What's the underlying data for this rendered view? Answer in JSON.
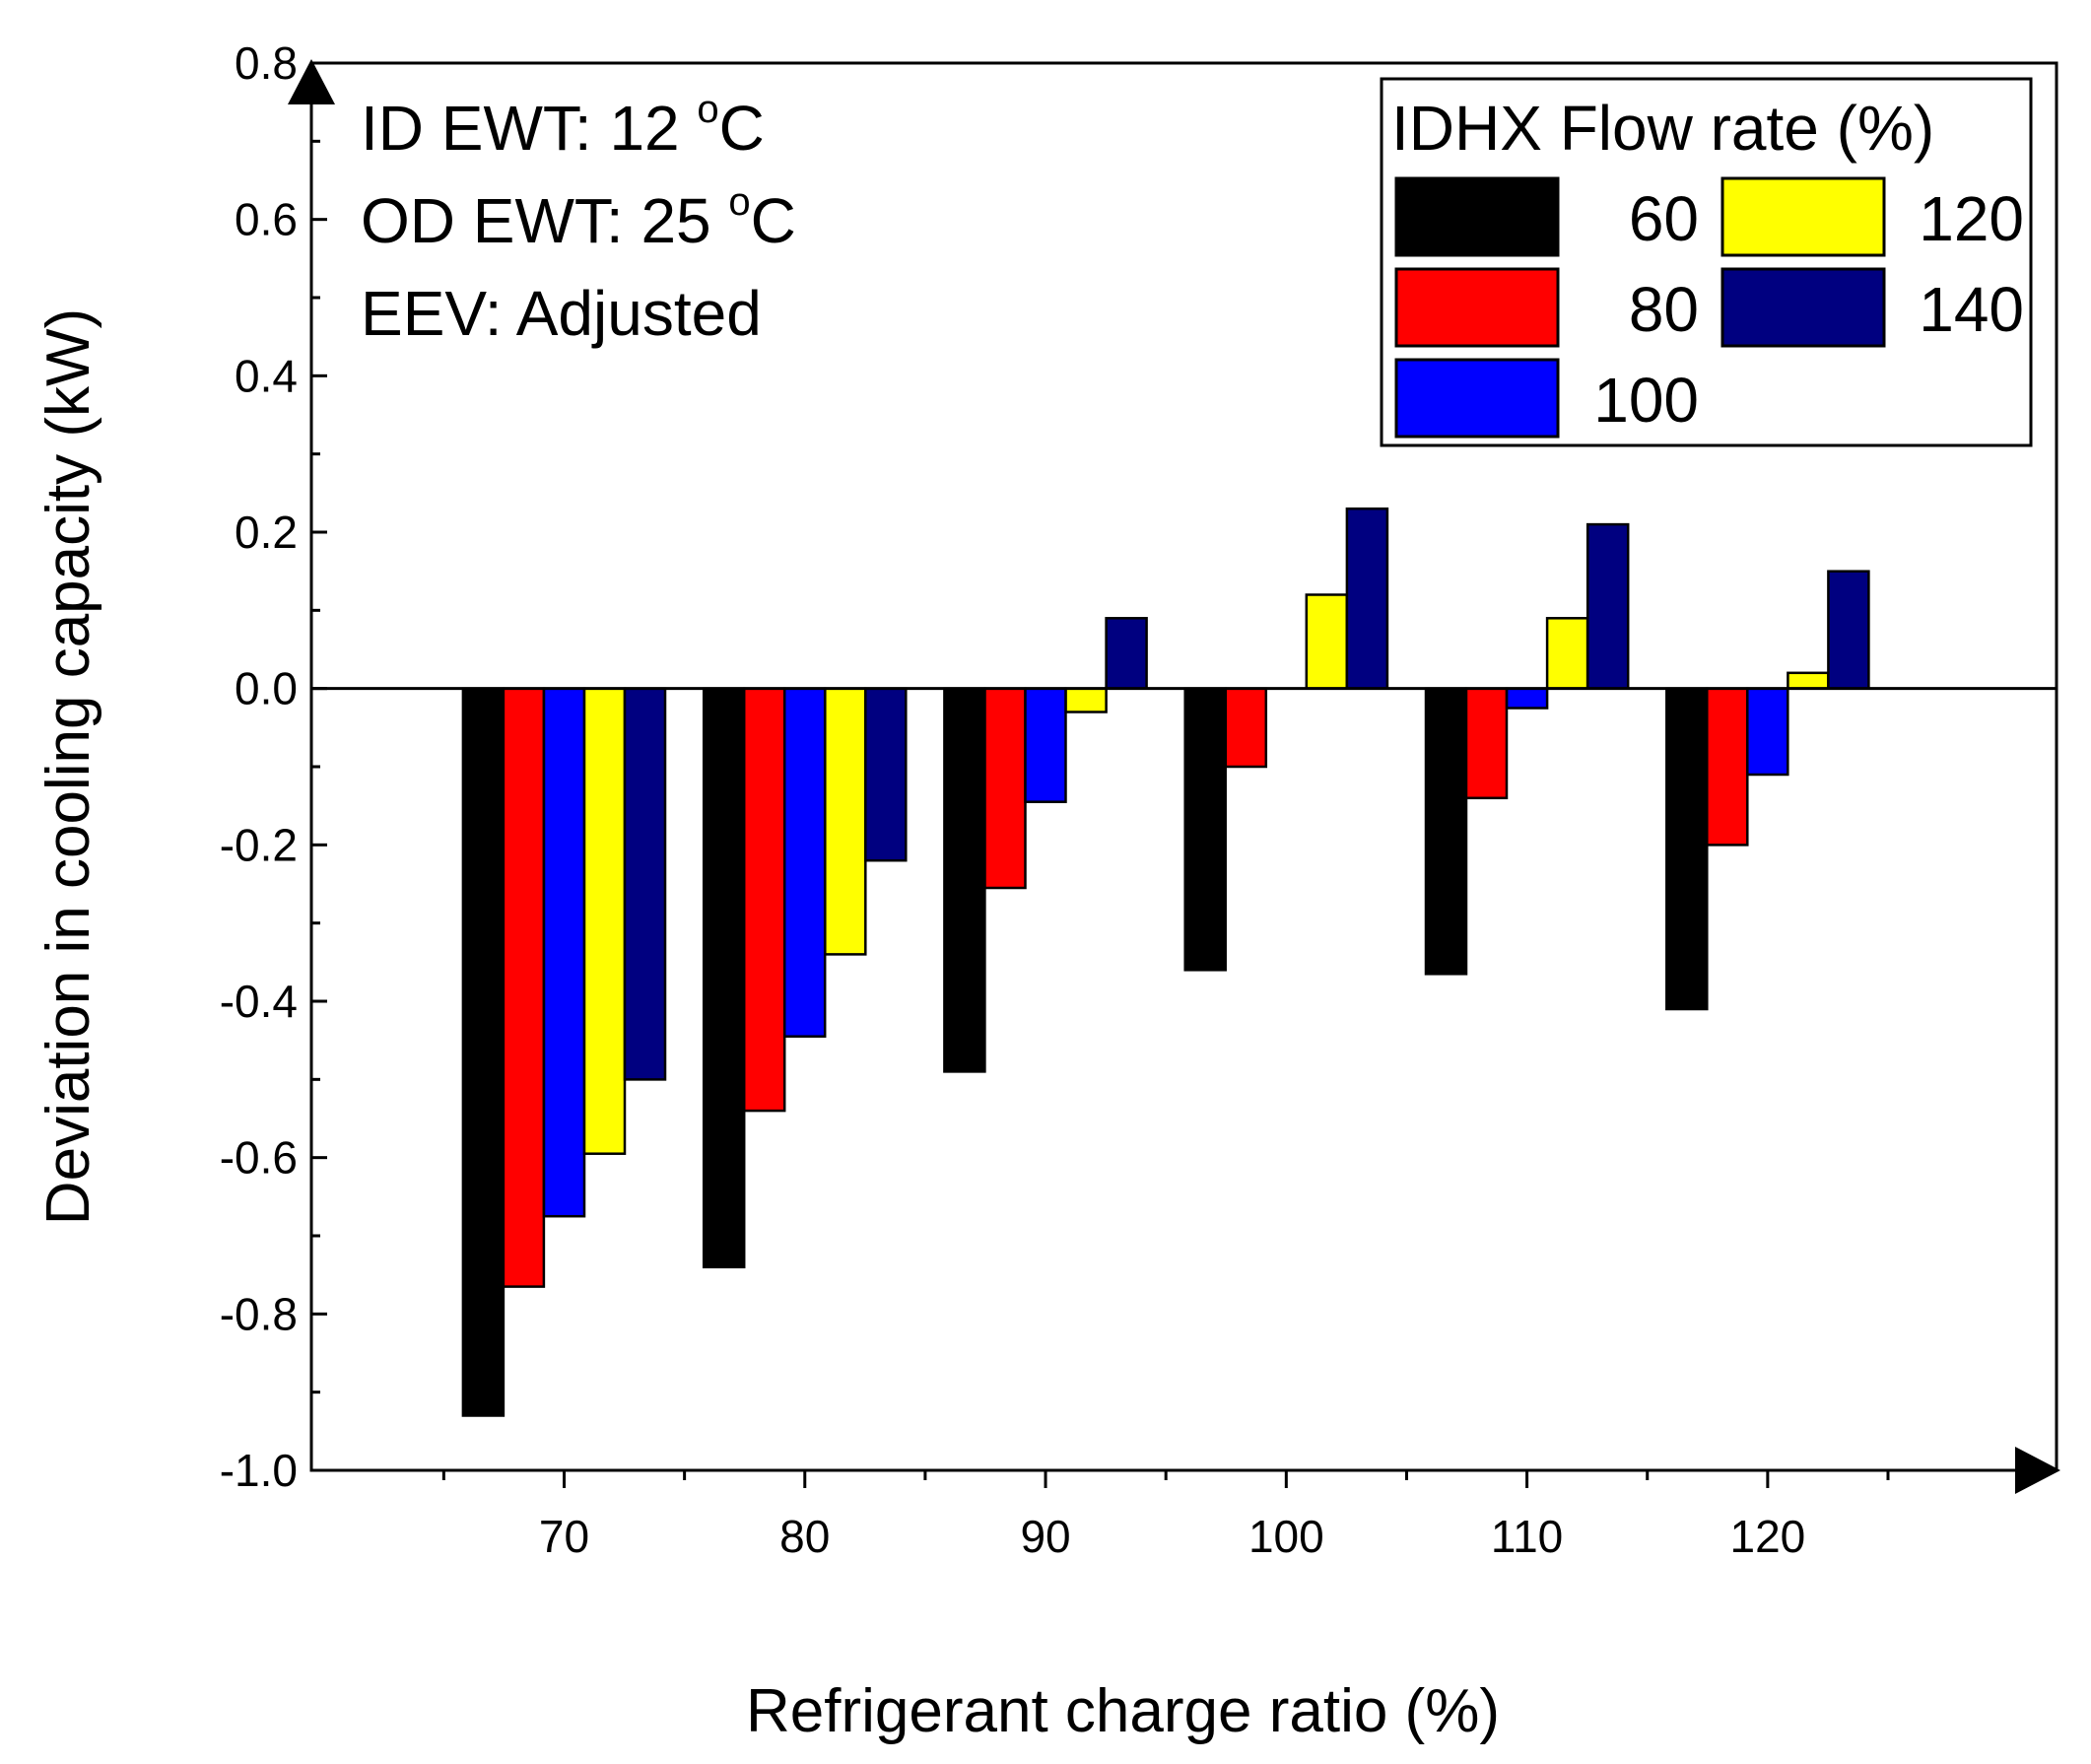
{
  "chart_data": {
    "type": "bar",
    "xlabel": "Refrigerant charge ratio (%)",
    "ylabel": "Deviation in cooling capacity (kW)",
    "ylim": [
      -1.0,
      0.8
    ],
    "y_ticks": [
      "-1.0",
      "-0.8",
      "-0.6",
      "-0.4",
      "-0.2",
      "0.0",
      "0.2",
      "0.4",
      "0.6",
      "0.8"
    ],
    "categories": [
      "70",
      "80",
      "90",
      "100",
      "110",
      "120"
    ],
    "legend": {
      "title": "IDHX Flow rate (%)",
      "placement": "top-right"
    },
    "annotations": [
      {
        "pre": "ID EWT: 12 ",
        "sup": "o",
        "post": "C"
      },
      {
        "pre": "OD EWT: 25 ",
        "sup": "o",
        "post": "C"
      },
      {
        "pre": "EEV: Adjusted",
        "sup": "",
        "post": ""
      }
    ],
    "series": [
      {
        "name": "60",
        "color": "#000000",
        "values": [
          -0.93,
          -0.74,
          -0.49,
          -0.36,
          -0.365,
          -0.41
        ]
      },
      {
        "name": "80",
        "color": "#ff0000",
        "values": [
          -0.765,
          -0.54,
          -0.255,
          -0.1,
          -0.14,
          -0.2
        ]
      },
      {
        "name": "100",
        "color": "#0000ff",
        "values": [
          -0.675,
          -0.445,
          -0.145,
          0.0,
          -0.025,
          -0.11
        ]
      },
      {
        "name": "120",
        "color": "#ffff00",
        "values": [
          -0.595,
          -0.34,
          -0.03,
          0.12,
          0.09,
          0.02
        ]
      },
      {
        "name": "140",
        "color": "#000080",
        "values": [
          -0.5,
          -0.22,
          0.09,
          0.23,
          0.21,
          0.15
        ]
      }
    ]
  }
}
